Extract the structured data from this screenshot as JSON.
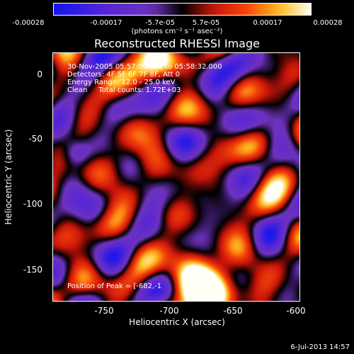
{
  "colorbar": {
    "ticks": [
      "-0.00028",
      "-0.00017",
      "-5.7e-05",
      "5.7e-05",
      "0.00017",
      "0.00028"
    ],
    "units": "(photons cm⁻² s⁻¹ asec⁻²)"
  },
  "title": "Reconstructed RHESSI Image",
  "annotations": {
    "time": "30-Nov-2005 05:57:00.000 to 05:58:32.000",
    "detectors": "Detectors: 4F 5F 6F 7F 8F, Att 0",
    "energy": "Energy Range: 12.0 - 25.0 keV",
    "clean": "Clean     Total counts: 1.72E+03",
    "peak": "Position of Peak = [-682,-1"
  },
  "axes": {
    "xlabel": "Heliocentric X (arcsec)",
    "ylabel": "Heliocentric Y (arcsec)",
    "xticks": [
      "-750",
      "-700",
      "-650",
      "-600"
    ],
    "yticks": [
      "0",
      "-50",
      "-100",
      "-150"
    ]
  },
  "footer": "6-Jul-2013 14:57"
}
